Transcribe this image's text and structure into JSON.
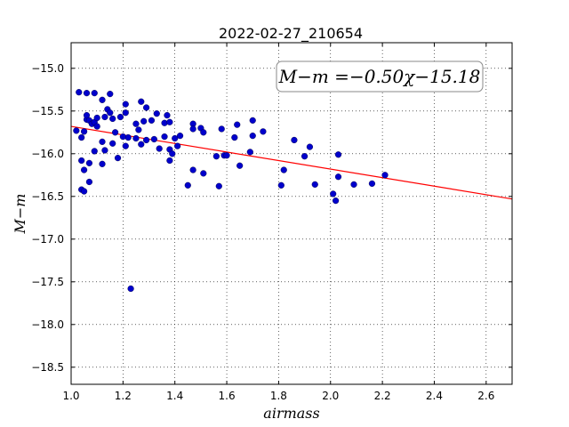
{
  "chart_data": {
    "type": "scatter",
    "title": "2022-02-27_210654",
    "xlabel": "airmass",
    "ylabel": "M−m",
    "xlim": [
      1.0,
      2.7
    ],
    "ylim": [
      -18.7,
      -14.7
    ],
    "y_inverted": true,
    "x_ticks": [
      "1.0",
      "1.2",
      "1.4",
      "1.6",
      "1.8",
      "2.0",
      "2.2",
      "2.4",
      "2.6"
    ],
    "y_ticks": [
      "−15.0",
      "−15.5",
      "−16.0",
      "−16.5",
      "−17.0",
      "−17.5",
      "−18.0",
      "−18.5"
    ],
    "grid": true,
    "annotation": "M−m =−0.50χ−15.18",
    "fit": {
      "slope": -0.5,
      "intercept": -15.18
    },
    "colors": {
      "points": "#0000cc",
      "fit_line": "#ff0000"
    },
    "points": [
      [
        1.03,
        -15.28
      ],
      [
        1.06,
        -15.29
      ],
      [
        1.09,
        -15.29
      ],
      [
        1.15,
        -15.3
      ],
      [
        1.02,
        -15.73
      ],
      [
        1.04,
        -15.81
      ],
      [
        1.05,
        -15.74
      ],
      [
        1.06,
        -15.6
      ],
      [
        1.06,
        -15.55
      ],
      [
        1.07,
        -15.61
      ],
      [
        1.08,
        -15.65
      ],
      [
        1.09,
        -15.63
      ],
      [
        1.1,
        -15.58
      ],
      [
        1.1,
        -15.68
      ],
      [
        1.12,
        -15.37
      ],
      [
        1.13,
        -15.57
      ],
      [
        1.14,
        -15.48
      ],
      [
        1.15,
        -15.52
      ],
      [
        1.16,
        -15.59
      ],
      [
        1.17,
        -15.75
      ],
      [
        1.19,
        -15.57
      ],
      [
        1.21,
        -15.52
      ],
      [
        1.21,
        -15.42
      ],
      [
        1.22,
        -15.81
      ],
      [
        1.25,
        -15.65
      ],
      [
        1.26,
        -15.72
      ],
      [
        1.27,
        -15.39
      ],
      [
        1.28,
        -15.62
      ],
      [
        1.29,
        -15.46
      ],
      [
        1.31,
        -15.61
      ],
      [
        1.33,
        -15.53
      ],
      [
        1.36,
        -15.64
      ],
      [
        1.37,
        -15.55
      ],
      [
        1.38,
        -15.63
      ],
      [
        1.04,
        -16.08
      ],
      [
        1.05,
        -16.19
      ],
      [
        1.04,
        -16.42
      ],
      [
        1.05,
        -16.44
      ],
      [
        1.07,
        -16.11
      ],
      [
        1.07,
        -16.33
      ],
      [
        1.09,
        -15.97
      ],
      [
        1.12,
        -15.86
      ],
      [
        1.12,
        -16.12
      ],
      [
        1.13,
        -15.96
      ],
      [
        1.16,
        -15.88
      ],
      [
        1.18,
        -16.05
      ],
      [
        1.2,
        -15.8
      ],
      [
        1.21,
        -15.91
      ],
      [
        1.25,
        -15.82
      ],
      [
        1.27,
        -15.89
      ],
      [
        1.29,
        -15.84
      ],
      [
        1.32,
        -15.83
      ],
      [
        1.34,
        -15.94
      ],
      [
        1.36,
        -15.8
      ],
      [
        1.38,
        -15.95
      ],
      [
        1.38,
        -16.08
      ],
      [
        1.39,
        -16.0
      ],
      [
        1.4,
        -15.82
      ],
      [
        1.41,
        -15.91
      ],
      [
        1.42,
        -15.79
      ],
      [
        1.45,
        -16.37
      ],
      [
        1.47,
        -15.65
      ],
      [
        1.47,
        -15.71
      ],
      [
        1.47,
        -16.19
      ],
      [
        1.5,
        -15.7
      ],
      [
        1.51,
        -15.75
      ],
      [
        1.51,
        -16.23
      ],
      [
        1.56,
        -16.03
      ],
      [
        1.57,
        -16.38
      ],
      [
        1.58,
        -15.71
      ],
      [
        1.59,
        -16.02
      ],
      [
        1.6,
        -16.02
      ],
      [
        1.63,
        -15.81
      ],
      [
        1.64,
        -15.66
      ],
      [
        1.65,
        -16.14
      ],
      [
        1.69,
        -15.98
      ],
      [
        1.7,
        -15.61
      ],
      [
        1.7,
        -15.79
      ],
      [
        1.74,
        -15.74
      ],
      [
        1.81,
        -16.37
      ],
      [
        1.82,
        -16.19
      ],
      [
        1.86,
        -15.84
      ],
      [
        1.9,
        -16.03
      ],
      [
        1.92,
        -15.92
      ],
      [
        1.94,
        -16.36
      ],
      [
        2.01,
        -16.47
      ],
      [
        2.02,
        -16.55
      ],
      [
        2.03,
        -16.27
      ],
      [
        2.03,
        -16.01
      ],
      [
        2.09,
        -16.36
      ],
      [
        2.16,
        -16.35
      ],
      [
        2.21,
        -16.25
      ],
      [
        1.23,
        -17.58
      ]
    ]
  }
}
